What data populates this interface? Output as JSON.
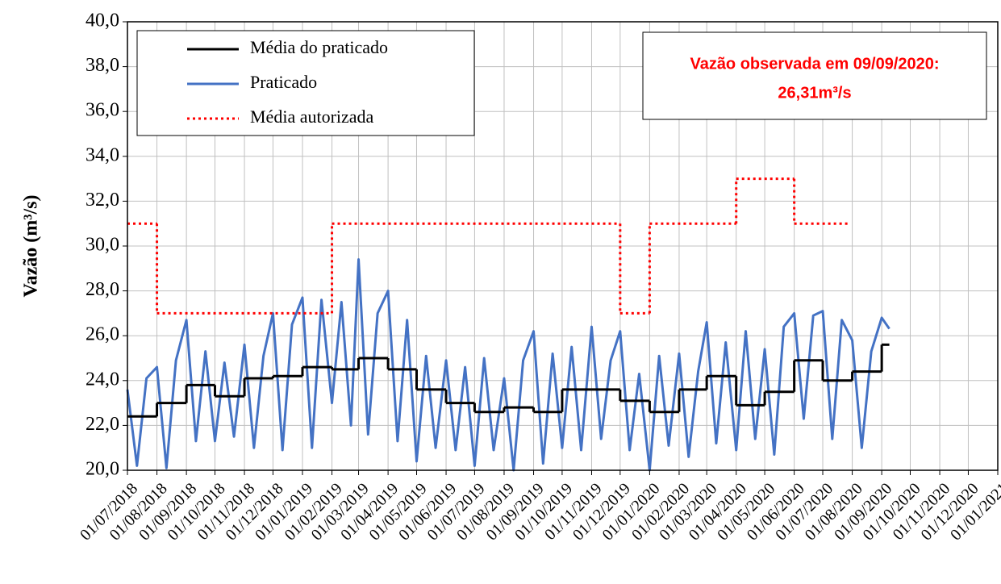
{
  "chart_data": {
    "type": "line",
    "ylabel": "Vazão (m³/s)",
    "ylim": [
      20,
      40
    ],
    "yticks": [
      {
        "value": 20,
        "label": "20,0"
      },
      {
        "value": 22,
        "label": "22,0"
      },
      {
        "value": 24,
        "label": "24,0"
      },
      {
        "value": 26,
        "label": "26,0"
      },
      {
        "value": 28,
        "label": "28,0"
      },
      {
        "value": 30,
        "label": "30,0"
      },
      {
        "value": 32,
        "label": "32,0"
      },
      {
        "value": 34,
        "label": "34,0"
      },
      {
        "value": 36,
        "label": "36,0"
      },
      {
        "value": 38,
        "label": "38,0"
      },
      {
        "value": 40,
        "label": "40,0"
      }
    ],
    "xlim": [
      "2018-07-01",
      "2021-01-01"
    ],
    "xticks": [
      {
        "value": "2018-07-01",
        "label": "01/07/2018"
      },
      {
        "value": "2018-08-01",
        "label": "01/08/2018"
      },
      {
        "value": "2018-09-01",
        "label": "01/09/2018"
      },
      {
        "value": "2018-10-01",
        "label": "01/10/2018"
      },
      {
        "value": "2018-11-01",
        "label": "01/11/2018"
      },
      {
        "value": "2018-12-01",
        "label": "01/12/2018"
      },
      {
        "value": "2019-01-01",
        "label": "01/01/2019"
      },
      {
        "value": "2019-02-01",
        "label": "01/02/2019"
      },
      {
        "value": "2019-03-01",
        "label": "01/03/2019"
      },
      {
        "value": "2019-04-01",
        "label": "01/04/2019"
      },
      {
        "value": "2019-05-01",
        "label": "01/05/2019"
      },
      {
        "value": "2019-06-01",
        "label": "01/06/2019"
      },
      {
        "value": "2019-07-01",
        "label": "01/07/2019"
      },
      {
        "value": "2019-08-01",
        "label": "01/08/2019"
      },
      {
        "value": "2019-09-01",
        "label": "01/09/2019"
      },
      {
        "value": "2019-10-01",
        "label": "01/10/2019"
      },
      {
        "value": "2019-11-01",
        "label": "01/11/2019"
      },
      {
        "value": "2019-12-01",
        "label": "01/12/2019"
      },
      {
        "value": "2020-01-01",
        "label": "01/01/2020"
      },
      {
        "value": "2020-02-01",
        "label": "01/02/2020"
      },
      {
        "value": "2020-03-01",
        "label": "01/03/2020"
      },
      {
        "value": "2020-04-01",
        "label": "01/04/2020"
      },
      {
        "value": "2020-05-01",
        "label": "01/05/2020"
      },
      {
        "value": "2020-06-01",
        "label": "01/06/2020"
      },
      {
        "value": "2020-07-01",
        "label": "01/07/2020"
      },
      {
        "value": "2020-08-01",
        "label": "01/08/2020"
      },
      {
        "value": "2020-09-01",
        "label": "01/09/2020"
      },
      {
        "value": "2020-10-01",
        "label": "01/10/2020"
      },
      {
        "value": "2020-11-01",
        "label": "01/11/2020"
      },
      {
        "value": "2020-12-01",
        "label": "01/12/2020"
      },
      {
        "value": "2021-01-01",
        "label": "01/01/2021"
      }
    ],
    "grid": true,
    "legend": "upper left",
    "annotation": [
      "Vazão observada em 09/09/2020:",
      "26,31m³/s"
    ],
    "annotation_color": "#ff0000",
    "series": [
      {
        "name": "Média do praticado",
        "color": "#000000",
        "style": "step",
        "dash": "solid",
        "x": [
          "2018-07-01",
          "2018-08-01",
          "2018-09-01",
          "2018-10-01",
          "2018-11-01",
          "2018-12-01",
          "2019-01-01",
          "2019-02-01",
          "2019-03-01",
          "2019-04-01",
          "2019-05-01",
          "2019-06-01",
          "2019-07-01",
          "2019-08-01",
          "2019-09-01",
          "2019-10-01",
          "2019-11-01",
          "2019-12-01",
          "2020-01-01",
          "2020-02-01",
          "2020-03-01",
          "2020-04-01",
          "2020-05-01",
          "2020-06-01",
          "2020-07-01",
          "2020-08-01",
          "2020-09-01"
        ],
        "x_end": "2020-09-09",
        "values": [
          22.4,
          23.0,
          23.8,
          23.3,
          24.1,
          24.2,
          24.6,
          24.5,
          25.0,
          24.5,
          23.6,
          23.0,
          22.6,
          22.8,
          22.6,
          23.6,
          23.6,
          23.1,
          22.6,
          23.6,
          24.2,
          22.9,
          23.5,
          24.9,
          24.0,
          24.4,
          25.6
        ]
      },
      {
        "name": "Praticado",
        "color": "#4472c4",
        "style": "line",
        "dash": "solid",
        "x": [
          "2018-07-01",
          "2018-07-11",
          "2018-07-21",
          "2018-08-01",
          "2018-08-11",
          "2018-08-21",
          "2018-09-01",
          "2018-09-11",
          "2018-09-21",
          "2018-10-01",
          "2018-10-11",
          "2018-10-21",
          "2018-11-01",
          "2018-11-11",
          "2018-11-21",
          "2018-12-01",
          "2018-12-11",
          "2018-12-21",
          "2019-01-01",
          "2019-01-11",
          "2019-01-21",
          "2019-02-01",
          "2019-02-11",
          "2019-02-21",
          "2019-03-01",
          "2019-03-11",
          "2019-03-21",
          "2019-04-01",
          "2019-04-11",
          "2019-04-21",
          "2019-05-01",
          "2019-05-11",
          "2019-05-21",
          "2019-06-01",
          "2019-06-11",
          "2019-06-21",
          "2019-07-01",
          "2019-07-11",
          "2019-07-21",
          "2019-08-01",
          "2019-08-11",
          "2019-08-21",
          "2019-09-01",
          "2019-09-11",
          "2019-09-21",
          "2019-10-01",
          "2019-10-11",
          "2019-10-21",
          "2019-11-01",
          "2019-11-11",
          "2019-11-21",
          "2019-12-01",
          "2019-12-11",
          "2019-12-21",
          "2020-01-01",
          "2020-01-11",
          "2020-01-21",
          "2020-02-01",
          "2020-02-11",
          "2020-02-21",
          "2020-03-01",
          "2020-03-11",
          "2020-03-21",
          "2020-04-01",
          "2020-04-11",
          "2020-04-21",
          "2020-05-01",
          "2020-05-11",
          "2020-05-21",
          "2020-06-01",
          "2020-06-11",
          "2020-06-21",
          "2020-07-01",
          "2020-07-11",
          "2020-07-21",
          "2020-08-01",
          "2020-08-11",
          "2020-08-21",
          "2020-09-01",
          "2020-09-09"
        ],
        "values": [
          23.6,
          20.2,
          24.1,
          24.6,
          20.1,
          24.9,
          26.7,
          21.3,
          25.3,
          21.3,
          24.8,
          21.5,
          25.6,
          21.0,
          25.1,
          27.0,
          20.9,
          26.5,
          27.7,
          21.0,
          27.6,
          23.0,
          27.5,
          22.0,
          29.4,
          21.6,
          27.0,
          28.0,
          21.3,
          26.7,
          20.4,
          25.1,
          21.0,
          24.9,
          20.9,
          24.6,
          20.2,
          25.0,
          20.9,
          24.1,
          20.0,
          24.9,
          26.2,
          20.3,
          25.2,
          21.0,
          25.5,
          20.9,
          26.4,
          21.4,
          24.9,
          26.2,
          20.9,
          24.3,
          20.0,
          25.1,
          21.1,
          25.2,
          20.6,
          24.4,
          26.6,
          21.2,
          25.7,
          20.9,
          26.2,
          21.4,
          25.4,
          20.7,
          26.4,
          27.0,
          22.3,
          26.9,
          27.1,
          21.4,
          26.7,
          25.8,
          21.0,
          25.3,
          26.8,
          26.31
        ]
      },
      {
        "name": "Média autorizada",
        "color": "#ff0000",
        "style": "step",
        "dash": "dotted",
        "x": [
          "2018-07-01",
          "2018-08-01",
          "2019-02-01",
          "2019-12-01",
          "2020-01-01",
          "2020-04-01",
          "2020-06-01"
        ],
        "x_end": "2020-07-28",
        "values": [
          31,
          27,
          31,
          27,
          31,
          33,
          31
        ]
      }
    ]
  }
}
